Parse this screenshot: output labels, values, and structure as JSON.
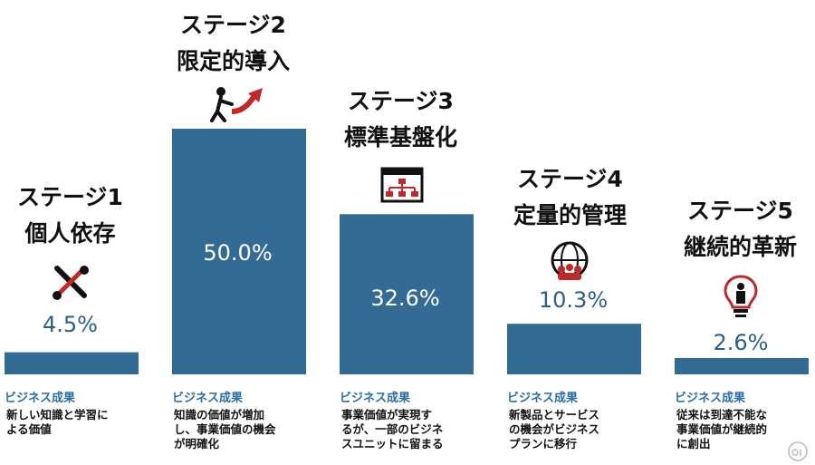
{
  "chart_data": {
    "type": "bar",
    "categories": [
      "ステージ1 個人依存",
      "ステージ2 限定的導入",
      "ステージ3 標準基盤化",
      "ステージ4 定量的管理",
      "ステージ5 継続的革新"
    ],
    "values": [
      4.5,
      50.0,
      32.6,
      10.3,
      2.6
    ],
    "value_labels": [
      "4.5%",
      "50.0%",
      "32.6%",
      "10.3%",
      "2.6%"
    ],
    "ylim": [
      0,
      50
    ],
    "bar_color": "#336b94"
  },
  "stages": [
    {
      "title1": "ステージ1",
      "title2": "個人依存",
      "icon": "wrench-screwdriver-icon",
      "value": "4.5%",
      "result_label": "ビジネス成果",
      "desc1": "新しい知識と学習に",
      "desc2": "よる価値",
      "desc3": ""
    },
    {
      "title1": "ステージ2",
      "title2": "限定的導入",
      "icon": "person-pulling-arrow-icon",
      "value": "50.0%",
      "result_label": "ビジネス成果",
      "desc1": "知識の価値が増加",
      "desc2": "し、事業価値の機会",
      "desc3": "が明確化"
    },
    {
      "title1": "ステージ3",
      "title2": "標準基盤化",
      "icon": "org-chart-window-icon",
      "value": "32.6%",
      "result_label": "ビジネス成果",
      "desc1": "事業価値が実現す",
      "desc2": "るが、一部のビジネ",
      "desc3": "スユニットに留まる"
    },
    {
      "title1": "ステージ4",
      "title2": "定量的管理",
      "icon": "globe-people-icon",
      "value": "10.3%",
      "result_label": "ビジネス成果",
      "desc1": "新製品とサービス",
      "desc2": "の機会がビジネス",
      "desc3": "プランに移行"
    },
    {
      "title1": "ステージ5",
      "title2": "継続的革新",
      "icon": "lightbulb-person-icon",
      "value": "2.6%",
      "result_label": "ビジネス成果",
      "desc1": "従来は到達不能な",
      "desc2": "事業価値が継続的",
      "desc3": "に創出"
    }
  ]
}
